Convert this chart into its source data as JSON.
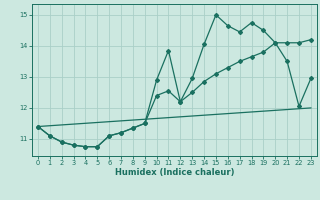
{
  "xlabel": "Humidex (Indice chaleur)",
  "bg_color": "#cce8e0",
  "grid_color": "#aacfc8",
  "line_color": "#1a7060",
  "xlim": [
    -0.5,
    23.5
  ],
  "ylim": [
    10.45,
    15.35
  ],
  "yticks": [
    11,
    12,
    13,
    14,
    15
  ],
  "xticks": [
    0,
    1,
    2,
    3,
    4,
    5,
    6,
    7,
    8,
    9,
    10,
    11,
    12,
    13,
    14,
    15,
    16,
    17,
    18,
    19,
    20,
    21,
    22,
    23
  ],
  "line1_x": [
    0,
    1,
    2,
    3,
    4,
    5,
    6,
    7,
    8,
    9,
    10,
    11,
    12,
    13,
    14,
    15,
    16,
    17,
    18,
    19,
    20,
    21,
    22,
    23
  ],
  "line1_y": [
    11.4,
    11.1,
    10.9,
    10.8,
    10.75,
    10.75,
    11.1,
    11.2,
    11.35,
    11.5,
    12.9,
    13.85,
    12.2,
    12.95,
    14.05,
    15.0,
    14.65,
    14.45,
    14.75,
    14.5,
    14.1,
    13.5,
    12.05,
    12.95
  ],
  "line2_x": [
    0,
    1,
    2,
    3,
    4,
    5,
    6,
    7,
    8,
    9,
    10,
    11,
    12,
    13,
    14,
    15,
    16,
    17,
    18,
    19,
    20,
    21,
    22,
    23
  ],
  "line2_y": [
    11.4,
    11.1,
    10.9,
    10.8,
    10.75,
    10.75,
    11.1,
    11.2,
    11.35,
    11.5,
    12.4,
    12.55,
    12.2,
    12.5,
    12.85,
    13.1,
    13.3,
    13.5,
    13.65,
    13.8,
    14.1,
    14.1,
    14.1,
    14.2
  ],
  "line3_x": [
    0,
    23
  ],
  "line3_y": [
    11.4,
    12.0
  ],
  "xlabel_fontsize": 6.0,
  "tick_fontsize": 4.8
}
